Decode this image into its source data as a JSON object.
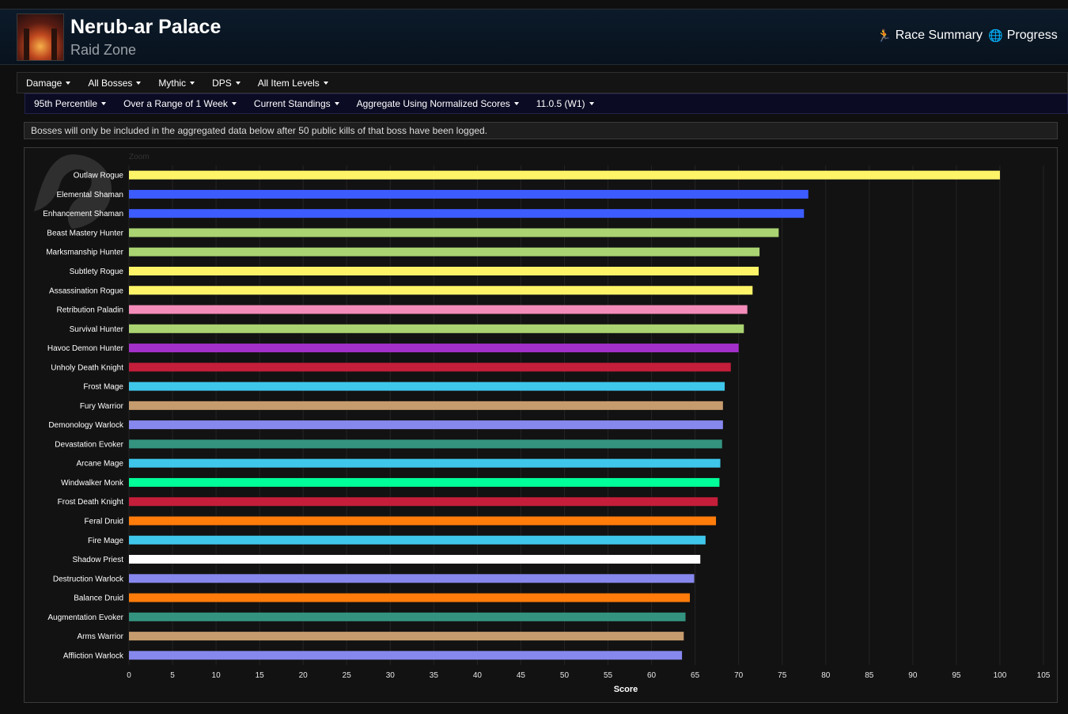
{
  "header": {
    "title": "Nerub-ar Palace",
    "subtitle": "Raid Zone",
    "links": [
      {
        "label": "Race Summary",
        "icon": "runner-icon"
      },
      {
        "label": "Progress",
        "icon": "globe-icon"
      }
    ]
  },
  "filters_primary": [
    "Damage",
    "All Bosses",
    "Mythic",
    "DPS",
    "All Item Levels"
  ],
  "filters_secondary": [
    "95th Percentile",
    "Over a Range of 1 Week",
    "Current Standings",
    "Aggregate Using Normalized Scores",
    "11.0.5 (W1)"
  ],
  "notice": "Bosses will only be included in the aggregated data below after 50 public kills of that boss have been logged.",
  "chart": {
    "zoom_label": "Zoom"
  },
  "chart_data": {
    "type": "bar",
    "orientation": "horizontal",
    "xlabel": "Score",
    "xlim": [
      0,
      105
    ],
    "xticks": [
      0,
      5,
      10,
      15,
      20,
      25,
      30,
      35,
      40,
      45,
      50,
      55,
      60,
      65,
      70,
      75,
      80,
      85,
      90,
      95,
      100,
      105
    ],
    "grid": "vertical",
    "categories": [
      "Outlaw Rogue",
      "Elemental Shaman",
      "Enhancement Shaman",
      "Beast Mastery Hunter",
      "Marksmanship Hunter",
      "Subtlety Rogue",
      "Assassination Rogue",
      "Retribution Paladin",
      "Survival Hunter",
      "Havoc Demon Hunter",
      "Unholy Death Knight",
      "Frost Mage",
      "Fury Warrior",
      "Demonology Warlock",
      "Devastation Evoker",
      "Arcane Mage",
      "Windwalker Monk",
      "Frost Death Knight",
      "Feral Druid",
      "Fire Mage",
      "Shadow Priest",
      "Destruction Warlock",
      "Balance Druid",
      "Augmentation Evoker",
      "Arms Warrior",
      "Affliction Warlock"
    ],
    "values": [
      100,
      78,
      77.5,
      74.6,
      72.4,
      72.3,
      71.6,
      71.0,
      70.6,
      70.0,
      69.1,
      68.4,
      68.2,
      68.2,
      68.1,
      67.9,
      67.8,
      67.6,
      67.4,
      66.2,
      65.6,
      64.9,
      64.4,
      63.9,
      63.7,
      63.5
    ],
    "colors": [
      "#fff468",
      "#3d5cff",
      "#3d5cff",
      "#aad372",
      "#aad372",
      "#fff468",
      "#fff468",
      "#f48cba",
      "#aad372",
      "#a330c9",
      "#c41e3a",
      "#3fc7eb",
      "#c69b6d",
      "#8788ee",
      "#33937f",
      "#3fc7eb",
      "#00ff98",
      "#c41e3a",
      "#ff7c0a",
      "#3fc7eb",
      "#ffffff",
      "#8788ee",
      "#ff7c0a",
      "#33937f",
      "#c69b6d",
      "#8788ee"
    ]
  }
}
